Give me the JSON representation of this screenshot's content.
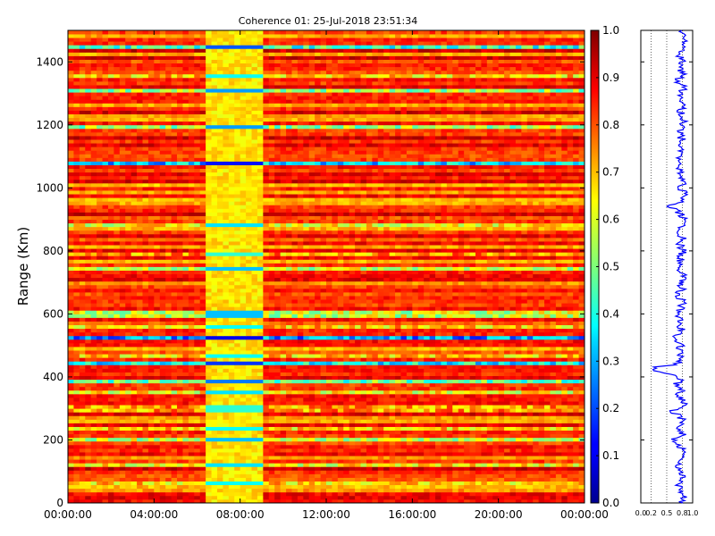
{
  "chart_data": [
    {
      "type": "heatmap",
      "title": "Coherence 01: 25-Jul-2018 23:51:34",
      "xlabel": "",
      "ylabel": "Range (Km)",
      "xlim": [
        0,
        24
      ],
      "ylim": [
        0,
        1500
      ],
      "x_ticks": [
        "00:00:00",
        "04:00:00",
        "08:00:00",
        "12:00:00",
        "16:00:00",
        "20:00:00",
        "00:00:00"
      ],
      "x_tick_hours": [
        0,
        4,
        8,
        12,
        16,
        20,
        24
      ],
      "y_ticks": [
        0,
        200,
        400,
        600,
        800,
        1000,
        1200,
        1400
      ],
      "colormap": "jet",
      "grid": false,
      "low_coherence_period_hours": [
        6.5,
        9.0
      ],
      "low_coherence_ranges_km": [
        {
          "range": 60,
          "value": 0.55
        },
        {
          "range": 120,
          "value": 0.5
        },
        {
          "range": 200,
          "value": 0.45
        },
        {
          "range": 240,
          "value": 0.55
        },
        {
          "range": 300,
          "value": 0.6
        },
        {
          "range": 350,
          "value": 0.5
        },
        {
          "range": 390,
          "value": 0.35
        },
        {
          "range": 440,
          "value": 0.25
        },
        {
          "range": 470,
          "value": 0.55
        },
        {
          "range": 520,
          "value": 0.15
        },
        {
          "range": 560,
          "value": 0.55
        },
        {
          "range": 600,
          "value": 0.45
        },
        {
          "range": 740,
          "value": 0.45
        },
        {
          "range": 790,
          "value": 0.6
        },
        {
          "range": 880,
          "value": 0.5
        },
        {
          "range": 1080,
          "value": 0.2
        },
        {
          "range": 1190,
          "value": 0.4
        },
        {
          "range": 1310,
          "value": 0.4
        },
        {
          "range": 1360,
          "value": 0.55
        },
        {
          "range": 1450,
          "value": 0.3
        }
      ]
    },
    {
      "type": "colorbar",
      "vlim": [
        0.0,
        1.0
      ],
      "ticks": [
        "0.0",
        "0.1",
        "0.2",
        "0.3",
        "0.4",
        "0.5",
        "0.6",
        "0.7",
        "0.8",
        "0.9",
        "1.0"
      ]
    },
    {
      "type": "line",
      "xlim": [
        0.0,
        1.0
      ],
      "x_ticks": [
        "0.0",
        "0.2",
        "0.5",
        "0.8",
        "1.0"
      ],
      "x_tick_values": [
        0.0,
        0.2,
        0.5,
        0.8,
        1.0
      ],
      "ylim": [
        0,
        1500
      ],
      "grid": "x-dotted",
      "line_color": "#0000ff",
      "points": [
        [
          0,
          0.78
        ],
        [
          20,
          0.82
        ],
        [
          40,
          0.75
        ],
        [
          60,
          0.7
        ],
        [
          80,
          0.8
        ],
        [
          100,
          0.76
        ],
        [
          120,
          0.68
        ],
        [
          140,
          0.8
        ],
        [
          160,
          0.85
        ],
        [
          180,
          0.75
        ],
        [
          200,
          0.62
        ],
        [
          220,
          0.82
        ],
        [
          240,
          0.7
        ],
        [
          260,
          0.8
        ],
        [
          280,
          0.75
        ],
        [
          290,
          0.55
        ],
        [
          300,
          0.78
        ],
        [
          320,
          0.84
        ],
        [
          340,
          0.72
        ],
        [
          360,
          0.8
        ],
        [
          380,
          0.7
        ],
        [
          400,
          0.78
        ],
        [
          420,
          0.32
        ],
        [
          430,
          0.25
        ],
        [
          440,
          0.7
        ],
        [
          460,
          0.8
        ],
        [
          480,
          0.74
        ],
        [
          500,
          0.78
        ],
        [
          520,
          0.6
        ],
        [
          540,
          0.82
        ],
        [
          560,
          0.75
        ],
        [
          580,
          0.8
        ],
        [
          600,
          0.7
        ],
        [
          620,
          0.78
        ],
        [
          640,
          0.8
        ],
        [
          660,
          0.72
        ],
        [
          680,
          0.8
        ],
        [
          700,
          0.78
        ],
        [
          720,
          0.82
        ],
        [
          740,
          0.72
        ],
        [
          760,
          0.8
        ],
        [
          780,
          0.74
        ],
        [
          800,
          0.82
        ],
        [
          820,
          0.76
        ],
        [
          840,
          0.8
        ],
        [
          860,
          0.7
        ],
        [
          880,
          0.78
        ],
        [
          900,
          0.82
        ],
        [
          920,
          0.76
        ],
        [
          940,
          0.55
        ],
        [
          960,
          0.8
        ],
        [
          980,
          0.84
        ],
        [
          1000,
          0.78
        ],
        [
          1020,
          0.82
        ],
        [
          1040,
          0.8
        ],
        [
          1060,
          0.76
        ],
        [
          1080,
          0.68
        ],
        [
          1100,
          0.8
        ],
        [
          1120,
          0.76
        ],
        [
          1140,
          0.82
        ],
        [
          1160,
          0.78
        ],
        [
          1180,
          0.72
        ],
        [
          1200,
          0.8
        ],
        [
          1220,
          0.84
        ],
        [
          1240,
          0.76
        ],
        [
          1260,
          0.8
        ],
        [
          1280,
          0.74
        ],
        [
          1300,
          0.78
        ],
        [
          1320,
          0.82
        ],
        [
          1340,
          0.7
        ],
        [
          1360,
          0.8
        ],
        [
          1380,
          0.76
        ],
        [
          1400,
          0.82
        ],
        [
          1420,
          0.72
        ],
        [
          1440,
          0.8
        ],
        [
          1460,
          0.86
        ],
        [
          1480,
          0.8
        ],
        [
          1500,
          0.82
        ]
      ]
    }
  ]
}
